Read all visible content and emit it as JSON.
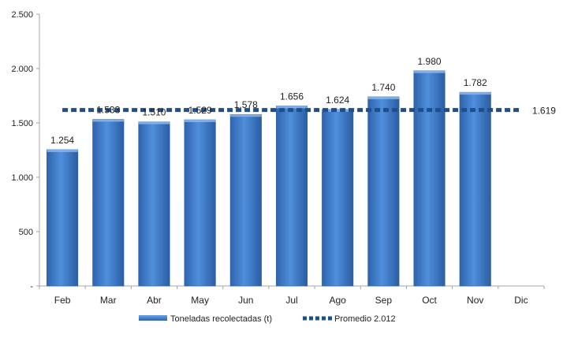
{
  "chart_data": {
    "type": "bar",
    "title": "",
    "categories": [
      "Feb",
      "Mar",
      "Abr",
      "May",
      "Jun",
      "Jul",
      "Ago",
      "Sep",
      "Oct",
      "Nov",
      "Dic"
    ],
    "series": [
      {
        "name": "Toneladas recolectadas (t)",
        "type": "bar",
        "values": [
          1254,
          1533,
          1510,
          1529,
          1578,
          1656,
          1624,
          1740,
          1980,
          1782,
          null
        ],
        "labels": [
          "1.254",
          "1.533",
          "1.510",
          "1.529",
          "1.578",
          "1.656",
          "1.624",
          "1.740",
          "1.980",
          "1.782",
          ""
        ],
        "color": "#3a77c9"
      },
      {
        "name": "Promedio 2.012",
        "type": "line",
        "style": "dashed",
        "value": 1619,
        "label": "1.619",
        "color": "#1f4e8a"
      }
    ],
    "ylim": [
      0,
      2500
    ],
    "yticks": [
      0,
      500,
      1000,
      1500,
      2000,
      2500
    ],
    "ytick_labels": [
      "-",
      "500",
      "1.000",
      "1.500",
      "2.000",
      "2.500"
    ],
    "grid": false,
    "legend": "bottom"
  }
}
